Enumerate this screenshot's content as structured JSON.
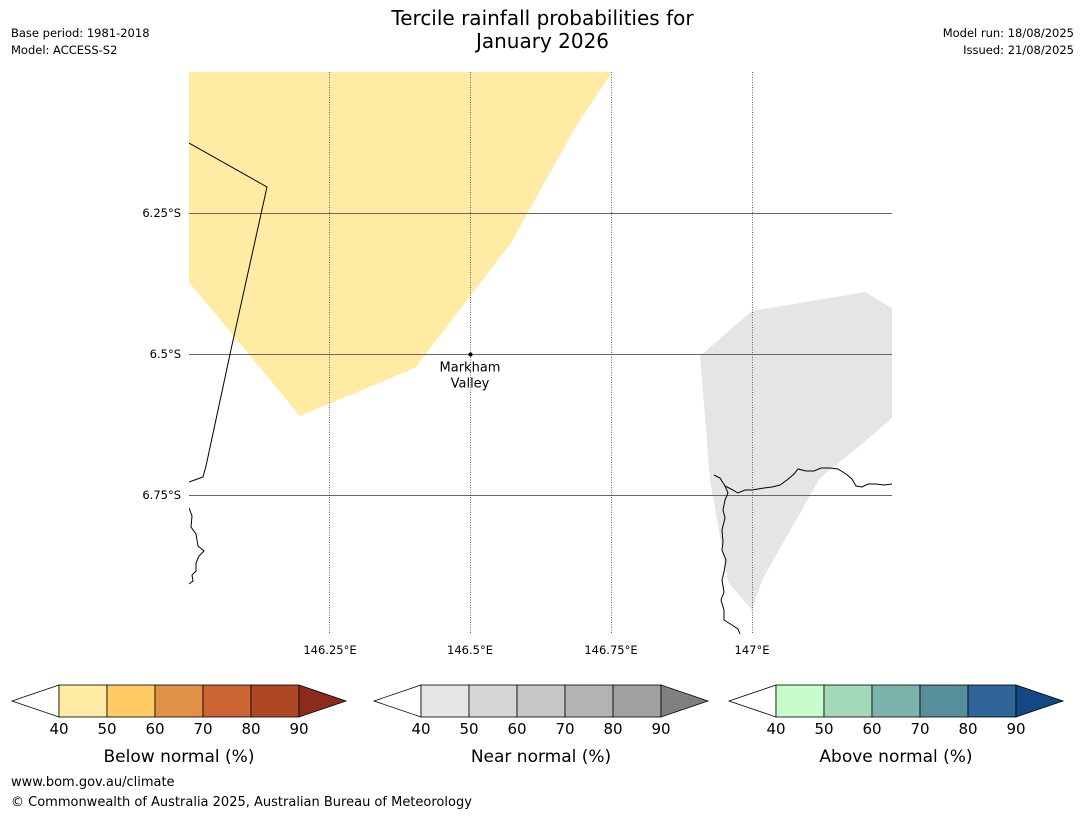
{
  "header": {
    "title_line1": "Tercile rainfall probabilities for",
    "title_line2": "January 2026",
    "base_period": "Base period: 1981-2018",
    "model": "Model: ACCESS-S2",
    "model_run": "Model run: 18/08/2025",
    "issued": "Issued: 21/08/2025"
  },
  "map": {
    "lat_labels": [
      "6.25°S",
      "6.5°S",
      "6.75°S"
    ],
    "lon_labels": [
      "146.25°E",
      "146.5°E",
      "146.75°E",
      "147°E"
    ],
    "location": {
      "name_line1": "Markham",
      "name_line2": "Valley"
    },
    "colors": {
      "below_normal_40_50": "#ffeba3",
      "near_normal_40_50": "#e5e5e5",
      "coastline": "#000000",
      "gridline": "#555555"
    }
  },
  "legends": [
    {
      "label": "Below normal (%)",
      "ticks": [
        "40",
        "50",
        "60",
        "70",
        "80",
        "90"
      ],
      "colors": [
        "#ffeba3",
        "#fecb64",
        "#e09145",
        "#cd6532",
        "#ae4726",
        "#8b2b1d"
      ]
    },
    {
      "label": "Near normal (%)",
      "ticks": [
        "40",
        "50",
        "60",
        "70",
        "80",
        "90"
      ],
      "colors": [
        "#e5e5e5",
        "#d6d6d6",
        "#c6c6c6",
        "#b3b3b3",
        "#a0a0a0",
        "#808080"
      ]
    },
    {
      "label": "Above normal (%)",
      "ticks": [
        "40",
        "50",
        "60",
        "70",
        "80",
        "90"
      ],
      "colors": [
        "#c9fccb",
        "#a3d9b7",
        "#7db3ad",
        "#578e9c",
        "#2f6598",
        "#134785"
      ]
    }
  ],
  "footer": {
    "url": "www.bom.gov.au/climate",
    "copyright": "© Commonwealth of Australia 2025, Australian Bureau of Meteorology"
  }
}
